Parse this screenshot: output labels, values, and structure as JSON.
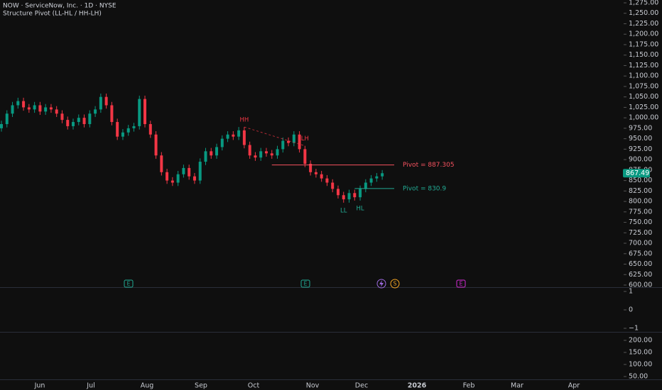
{
  "chart_data": {
    "type": "candlestick",
    "title": "NOW · ServiceNow, Inc. · 1D · NYSE",
    "subtitle": "Structure Pivot (LL-HL / HH-LH)",
    "up_color": "#089981",
    "down_color": "#f23645",
    "open": [
      975,
      985,
      1010,
      1030,
      1040,
      1025,
      1020,
      1030,
      1015,
      1025,
      1020,
      1010,
      995,
      980,
      990,
      1000,
      985,
      1010,
      1020,
      1050,
      1030,
      990,
      955,
      965,
      975,
      980,
      1045,
      985,
      960,
      910,
      870,
      850,
      845,
      865,
      880,
      860,
      850,
      895,
      920,
      910,
      930,
      950,
      960,
      955,
      970,
      935,
      910,
      905,
      920,
      915,
      910,
      925,
      945,
      940,
      960,
      925,
      890,
      870,
      865,
      855,
      845,
      830,
      815,
      805,
      820,
      810,
      830,
      845,
      855,
      860
    ],
    "high": [
      993,
      1018,
      1038,
      1048,
      1048,
      1033,
      1038,
      1038,
      1033,
      1033,
      1028,
      1018,
      1003,
      998,
      1008,
      1008,
      1018,
      1028,
      1058,
      1058,
      1038,
      998,
      973,
      983,
      988,
      1053,
      1053,
      993,
      968,
      918,
      878,
      858,
      873,
      888,
      888,
      868,
      903,
      928,
      928,
      938,
      958,
      968,
      968,
      978,
      978,
      943,
      918,
      928,
      928,
      923,
      933,
      953,
      953,
      968,
      968,
      933,
      898,
      878,
      873,
      863,
      853,
      838,
      823,
      828,
      828,
      838,
      853,
      863,
      868,
      875
    ],
    "low": [
      967,
      977,
      1002,
      1022,
      1017,
      1012,
      1012,
      1007,
      1007,
      1012,
      1002,
      987,
      972,
      972,
      982,
      977,
      977,
      1002,
      1012,
      1022,
      982,
      947,
      947,
      957,
      967,
      972,
      977,
      952,
      902,
      862,
      842,
      837,
      837,
      857,
      852,
      842,
      842,
      887,
      902,
      902,
      922,
      942,
      947,
      947,
      927,
      902,
      897,
      897,
      907,
      902,
      902,
      917,
      932,
      932,
      917,
      882,
      862,
      857,
      847,
      837,
      822,
      807,
      797,
      797,
      802,
      802,
      822,
      837,
      847,
      852
    ],
    "close": [
      985,
      1010,
      1030,
      1040,
      1025,
      1020,
      1030,
      1015,
      1025,
      1020,
      1010,
      995,
      980,
      990,
      1000,
      985,
      1010,
      1020,
      1050,
      1030,
      990,
      955,
      965,
      975,
      980,
      1045,
      985,
      960,
      910,
      870,
      850,
      845,
      865,
      880,
      860,
      850,
      895,
      920,
      910,
      930,
      950,
      960,
      955,
      970,
      935,
      910,
      905,
      920,
      915,
      910,
      925,
      945,
      940,
      960,
      925,
      890,
      870,
      865,
      855,
      845,
      830,
      815,
      805,
      820,
      810,
      830,
      845,
      855,
      860,
      867.49
    ],
    "x_labels": [
      "Jun",
      "Jul",
      "Aug",
      "Sep",
      "Oct",
      "Nov",
      "Dec",
      "2026",
      "Feb",
      "Mar",
      "Apr"
    ],
    "ylim": [
      600,
      1275
    ],
    "yticks": [
      {
        "value": 600,
        "label": "600.00"
      },
      {
        "value": 625,
        "label": "625.00"
      },
      {
        "value": 650,
        "label": "650.00"
      },
      {
        "value": 675,
        "label": "675.00"
      },
      {
        "value": 700,
        "label": "700.00"
      },
      {
        "value": 725,
        "label": "725.00"
      },
      {
        "value": 750,
        "label": "750.00"
      },
      {
        "value": 775,
        "label": "775.00"
      },
      {
        "value": 800,
        "label": "800.00"
      },
      {
        "value": 825,
        "label": "825.00"
      },
      {
        "value": 850,
        "label": "850.00"
      },
      {
        "value": 875,
        "label": "875.00"
      },
      {
        "value": 900,
        "label": "900.00"
      },
      {
        "value": 925,
        "label": "925.00"
      },
      {
        "value": 950,
        "label": "950.00"
      },
      {
        "value": 975,
        "label": "975.00"
      },
      {
        "value": 1000,
        "label": "1,000.00"
      },
      {
        "value": 1025,
        "label": "1,025.00"
      },
      {
        "value": 1050,
        "label": "1,050.00"
      },
      {
        "value": 1075,
        "label": "1,075.00"
      },
      {
        "value": 1100,
        "label": "1,100.00"
      },
      {
        "value": 1125,
        "label": "1,125.00"
      },
      {
        "value": 1150,
        "label": "1,150.00"
      },
      {
        "value": 1175,
        "label": "1,175.00"
      },
      {
        "value": 1200,
        "label": "1,200.00"
      },
      {
        "value": 1225,
        "label": "1,225.00"
      },
      {
        "value": 1250,
        "label": "1,250.00"
      },
      {
        "value": 1275,
        "label": "1,275.00"
      }
    ],
    "pivots": [
      {
        "label": "Pivot = 887.305",
        "value": 887.305,
        "color": "#f7525f"
      },
      {
        "label": "Pivot = 830.9",
        "value": 830.9,
        "color": "#22ab94"
      }
    ],
    "structure_labels": [
      "HH",
      "LH",
      "LL",
      "HL"
    ],
    "events": [
      "E",
      "E",
      "S",
      "E"
    ],
    "pane2": {
      "ylim": [
        -1.25,
        1.25
      ],
      "yticks": [
        1,
        0,
        {
          "value": -1,
          "label": "−1"
        }
      ]
    },
    "pane3": {
      "ylim": [
        25,
        225
      ],
      "yticks": [
        {
          "value": 200,
          "label": "200.00"
        },
        {
          "value": 150,
          "label": "150.00"
        },
        {
          "value": 100,
          "label": "100.00"
        },
        {
          "value": 50,
          "label": "50.00"
        }
      ]
    }
  }
}
